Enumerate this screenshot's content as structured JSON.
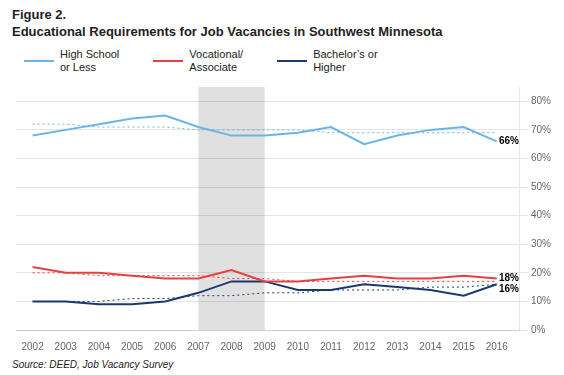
{
  "chart_data": {
    "type": "line",
    "title": "Figure 2.",
    "subtitle": "Educational Requirements for Job Vacancies in Southwest Minnesota",
    "x": [
      2002,
      2003,
      2004,
      2005,
      2006,
      2007,
      2008,
      2009,
      2010,
      2011,
      2012,
      2013,
      2014,
      2015,
      2016
    ],
    "series": [
      {
        "name": "High School\nor Less",
        "color": "#6ab4e8",
        "values": [
          68,
          70,
          72,
          74,
          75,
          71,
          68,
          68,
          69,
          71,
          65,
          68,
          70,
          71,
          66
        ],
        "trend": [
          72,
          72,
          71,
          71,
          71,
          70,
          70,
          70,
          70,
          69,
          69,
          69,
          69,
          69,
          69
        ]
      },
      {
        "name": "Vocational/\nAssociate",
        "color": "#e84040",
        "values": [
          22,
          20,
          20,
          19,
          18,
          18,
          21,
          17,
          17,
          18,
          19,
          18,
          18,
          19,
          18
        ],
        "trend": [
          20,
          20,
          19,
          19,
          19,
          19,
          18,
          18,
          17,
          17,
          17,
          17,
          17,
          17,
          17
        ]
      },
      {
        "name": "Bachelor’s or\nHigher",
        "color": "#1a3a6e",
        "values": [
          10,
          10,
          9,
          9,
          10,
          13,
          17,
          17,
          14,
          14,
          16,
          15,
          14,
          12,
          16
        ],
        "trend": [
          10,
          10,
          10,
          11,
          11,
          12,
          12,
          13,
          13,
          14,
          14,
          14,
          15,
          15,
          16
        ]
      }
    ],
    "xlim": [
      2001.5,
      2016.7
    ],
    "xticks": [
      2002,
      2003,
      2004,
      2005,
      2006,
      2007,
      2008,
      2009,
      2010,
      2011,
      2012,
      2013,
      2014,
      2015,
      2016
    ],
    "ylim": [
      0,
      85
    ],
    "yticks": [
      {
        "value": 0,
        "label": "0%"
      },
      {
        "value": 10,
        "label": "10%"
      },
      {
        "value": 20,
        "label": "20%"
      },
      {
        "value": 30,
        "label": "30%"
      },
      {
        "value": 40,
        "label": "40%"
      },
      {
        "value": 50,
        "label": "50%"
      },
      {
        "value": 60,
        "label": "60%"
      },
      {
        "value": 70,
        "label": "70%"
      },
      {
        "value": 80,
        "label": "80%"
      }
    ],
    "grid": true,
    "legend": "top",
    "shaded": {
      "x": [
        2007,
        2009
      ],
      "color": "#e0e0e0"
    },
    "annotations": [
      {
        "text": "66%",
        "x": 2016.7,
        "y": 66
      },
      {
        "text": "18%",
        "x": 2016.7,
        "y": 18
      },
      {
        "text": "16%",
        "x": 2016.7,
        "y": 16
      }
    ],
    "source": "Source: DEED, Job Vacancy Survey"
  }
}
